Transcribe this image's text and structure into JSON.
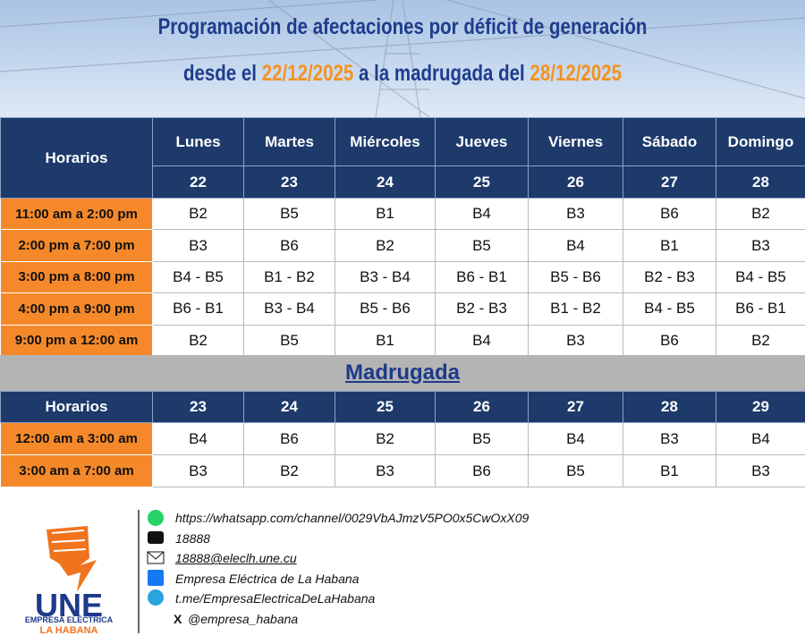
{
  "header": {
    "title": "Programación de afectaciones por déficit de generación",
    "subtitle": {
      "prefix": "desde el",
      "start": "22/12/2025",
      "middle": "a la madrugada del",
      "end": "28/12/2025"
    }
  },
  "schedule": {
    "horarios": "Horarios",
    "days": [
      "Lunes",
      "Martes",
      "Miércoles",
      "Jueves",
      "Viernes",
      "Sábado",
      "Domingo"
    ],
    "dates": [
      "22",
      "23",
      "24",
      "25",
      "26",
      "27",
      "28"
    ],
    "rows": [
      {
        "time": "11:00 am a 2:00 pm",
        "blocks": [
          "B2",
          "B5",
          "B1",
          "B4",
          "B3",
          "B6",
          "B2"
        ]
      },
      {
        "time": "2:00 pm a 7:00 pm",
        "blocks": [
          "B3",
          "B6",
          "B2",
          "B5",
          "B4",
          "B1",
          "B3"
        ]
      },
      {
        "time": "3:00 pm a 8:00 pm",
        "blocks": [
          "B4 - B5",
          "B1 - B2",
          "B3 - B4",
          "B6 - B1",
          "B5 - B6",
          "B2 - B3",
          "B4 - B5"
        ]
      },
      {
        "time": "4:00 pm a 9:00 pm",
        "blocks": [
          "B6 - B1",
          "B3 - B4",
          "B5 - B6",
          "B2 - B3",
          "B1 - B2",
          "B4 - B5",
          "B6 - B1"
        ]
      },
      {
        "time": "9:00 pm a 12:00 am",
        "blocks": [
          "B2",
          "B5",
          "B1",
          "B4",
          "B3",
          "B6",
          "B2"
        ]
      }
    ]
  },
  "madrugada": {
    "title": "Madrugada",
    "horarios": "Horarios",
    "dates": [
      "23",
      "24",
      "25",
      "26",
      "27",
      "28",
      "29"
    ],
    "rows": [
      {
        "time": "12:00 am a 3:00 am",
        "blocks": [
          "B4",
          "B6",
          "B2",
          "B5",
          "B4",
          "B3",
          "B4"
        ]
      },
      {
        "time": "3:00 am a 7:00 am",
        "blocks": [
          "B3",
          "B2",
          "B3",
          "B6",
          "B5",
          "B1",
          "B3"
        ]
      }
    ]
  },
  "footer": {
    "logo": {
      "name": "UNE",
      "line1": "EMPRESA ELÉCTRICA",
      "line2": "LA HABANA"
    },
    "contacts": [
      "https://whatsapp.com/channel/0029VbAJmzV5PO0x5CwOxX09",
      "18888",
      "18888@eleclh.une.cu",
      "Empresa Eléctrica de La Habana",
      "t.me/EmpresaElectricaDeLaHabana",
      "@empresa_habana"
    ],
    "x_icon": "X"
  }
}
